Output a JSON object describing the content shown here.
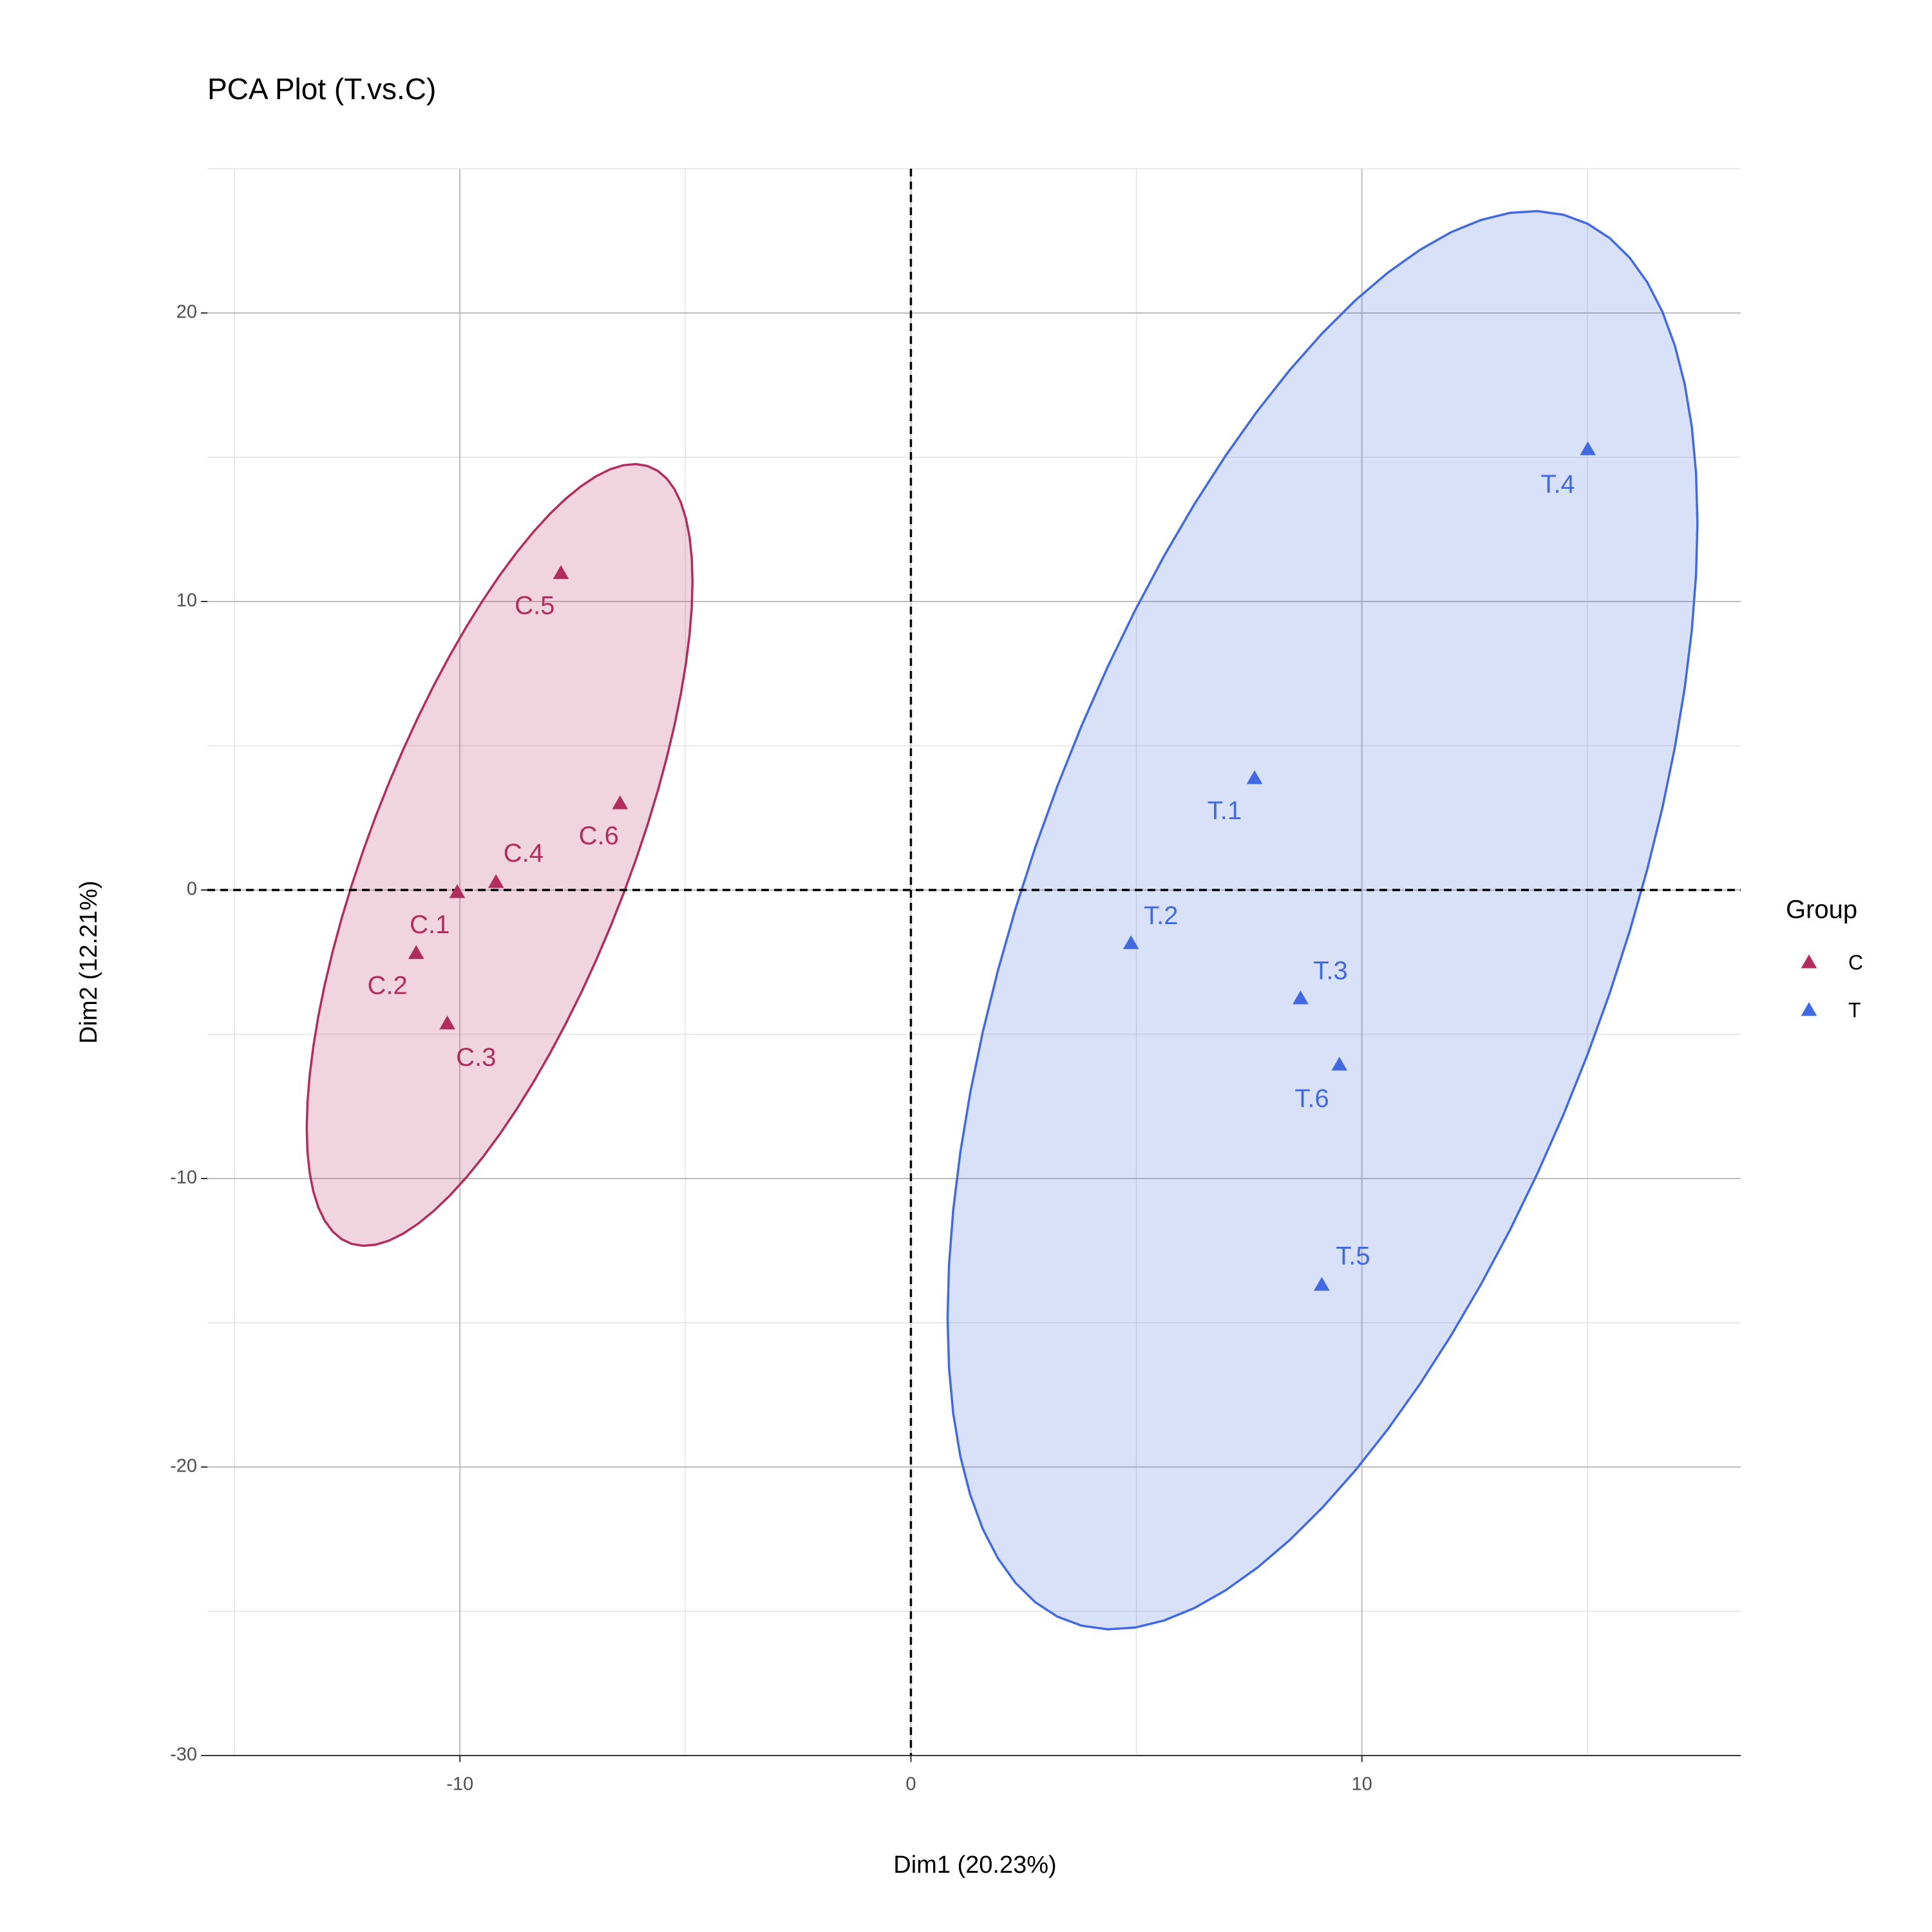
{
  "chart_data": {
    "type": "scatter",
    "title": "PCA Plot (T.vs.C)",
    "xlabel": "Dim1 (20.23%)",
    "ylabel": "Dim2 (12.21%)",
    "legend_title": "Group",
    "legend": "right",
    "grid": true,
    "xlim": [
      -15.6,
      18.4
    ],
    "ylim": [
      -30,
      25
    ],
    "xticks": [
      -10,
      0,
      10
    ],
    "yticks": [
      -30,
      -20,
      -10,
      0,
      10,
      20
    ],
    "hline": 0,
    "vline": 0,
    "series": [
      {
        "name": "C",
        "color": "#b22c5e",
        "labels": [
          "C.1",
          "C.2",
          "C.3",
          "C.4",
          "C.5",
          "C.6"
        ],
        "x": [
          -10.06,
          -10.97,
          -10.28,
          -9.2,
          -7.76,
          -6.45
        ],
        "values": [
          -0.09,
          -2.2,
          -4.64,
          0.26,
          10.97,
          2.99
        ]
      },
      {
        "name": "T",
        "color": "#4169e1",
        "labels": [
          "T.1",
          "T.2",
          "T.3",
          "T.4",
          "T.5",
          "T.6"
        ],
        "x": [
          7.62,
          4.88,
          8.64,
          15.01,
          9.11,
          9.5
        ],
        "values": [
          3.86,
          -1.86,
          -3.77,
          15.26,
          -13.7,
          -6.07
        ]
      }
    ]
  }
}
